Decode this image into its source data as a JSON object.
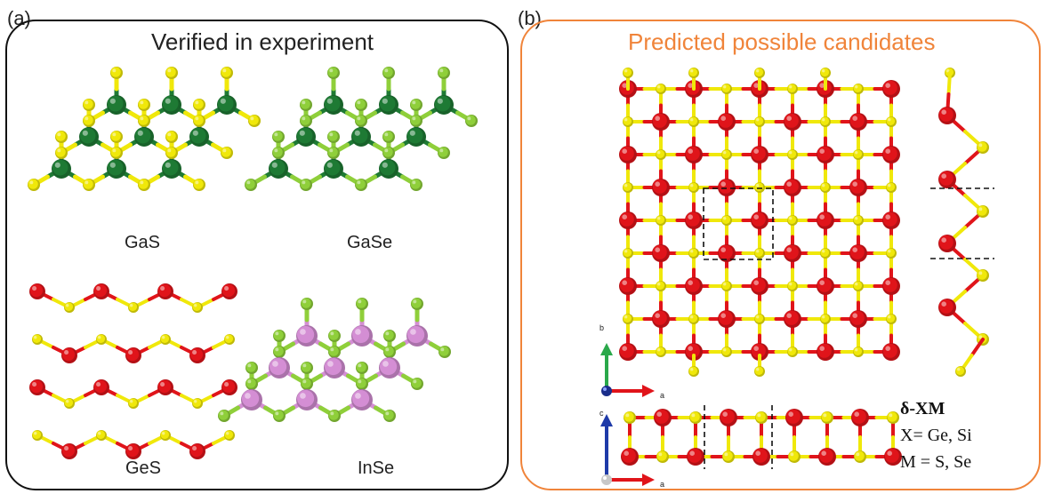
{
  "panel_a": {
    "tag": "(a)",
    "title": "Verified in experiment",
    "structures": [
      {
        "label": "GaS",
        "metal_color": "#1e7a34",
        "chalcogen_color": "#f0e80a"
      },
      {
        "label": "GaSe",
        "metal_color": "#1e7a34",
        "chalcogen_color": "#8fcf3a"
      },
      {
        "label": "GeS",
        "metal_color": "#e0141a",
        "chalcogen_color": "#f0e80a"
      },
      {
        "label": "InSe",
        "metal_color": "#d48ed4",
        "chalcogen_color": "#8fcf3a"
      }
    ]
  },
  "panel_b": {
    "tag": "(b)",
    "title": "Predicted possible candidates",
    "axes_top": {
      "vertical": "b",
      "horizontal": "a"
    },
    "axes_bottom": {
      "vertical": "c",
      "horizontal": "a"
    },
    "formula": "δ-XM",
    "x_line": "X= Ge, Si",
    "m_line": "M = S, Se",
    "atom_colors": {
      "x": "#e0141a",
      "m": "#f0e80a"
    }
  }
}
